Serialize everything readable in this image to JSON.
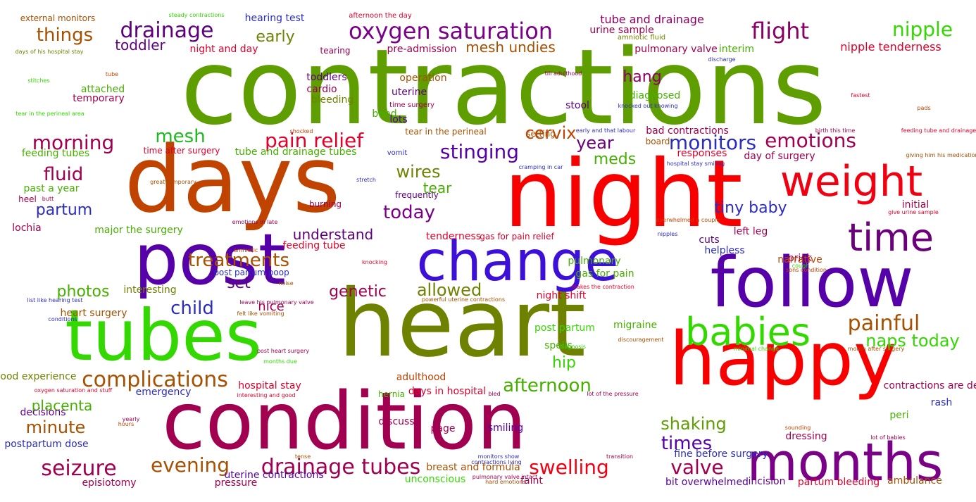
{
  "words": [
    {
      "text": "contractions",
      "color": "#5e9e00"
    },
    {
      "text": "days",
      "color": "#c04300"
    },
    {
      "text": "night",
      "color": "#f80000"
    },
    {
      "text": "heart",
      "color": "#6f8200"
    },
    {
      "text": "post",
      "color": "#5500a8"
    },
    {
      "text": "change",
      "color": "#3c10d8"
    },
    {
      "text": "follow",
      "color": "#5500a8"
    },
    {
      "text": "tubes",
      "color": "#33d800"
    },
    {
      "text": "happy",
      "color": "#f80000"
    },
    {
      "text": "condition",
      "color": "#a0004f"
    },
    {
      "text": "months",
      "color": "#7a0088"
    },
    {
      "text": "weight",
      "color": "#f00010"
    },
    {
      "text": "time",
      "color": "#6b007d"
    },
    {
      "text": "babies",
      "color": "#33d800"
    },
    {
      "text": "oxygen saturation",
      "color": "#7a0088"
    },
    {
      "text": "flight",
      "color": "#8b0065"
    },
    {
      "text": "drainage",
      "color": "#5e007e"
    },
    {
      "text": "drainage tubes",
      "color": "#a0004f"
    },
    {
      "text": "complications",
      "color": "#a65000"
    },
    {
      "text": "seizure",
      "color": "#a0004f"
    },
    {
      "text": "evening",
      "color": "#a65000"
    },
    {
      "text": "swelling",
      "color": "#f00010"
    },
    {
      "text": "valve",
      "color": "#a0004f"
    },
    {
      "text": "painful",
      "color": "#a65000"
    },
    {
      "text": "pain relief",
      "color": "#e0002a"
    },
    {
      "text": "emotions",
      "color": "#a0004f"
    },
    {
      "text": "monitors",
      "color": "#2b2cc0"
    },
    {
      "text": "stinging",
      "color": "#5500a8"
    },
    {
      "text": "mesh",
      "color": "#1fb820"
    },
    {
      "text": "morning",
      "color": "#a0004f"
    },
    {
      "text": "nipple",
      "color": "#33d800"
    },
    {
      "text": "things",
      "color": "#a65000"
    },
    {
      "text": "afternoon",
      "color": "#46b000"
    },
    {
      "text": "naps today",
      "color": "#33d800"
    },
    {
      "text": "shaking",
      "color": "#5e9e00"
    },
    {
      "text": "treatments",
      "color": "#a65000"
    },
    {
      "text": "allowed",
      "color": "#6f8200"
    },
    {
      "text": "wires",
      "color": "#6f8200"
    },
    {
      "text": "today",
      "color": "#7a0088"
    },
    {
      "text": "child",
      "color": "#2b2cc0"
    },
    {
      "text": "times",
      "color": "#5500a8"
    },
    {
      "text": "minute",
      "color": "#a65000"
    },
    {
      "text": "placenta",
      "color": "#46b000"
    },
    {
      "text": "fluid",
      "color": "#a0004f"
    },
    {
      "text": "partum",
      "color": "#2b2cc0"
    },
    {
      "text": "cervix",
      "color": "#c04300"
    },
    {
      "text": "year",
      "color": "#6b007d"
    },
    {
      "text": "tiny baby",
      "color": "#2b2cc0"
    },
    {
      "text": "genetic",
      "color": "#a0004f"
    },
    {
      "text": "photos",
      "color": "#46b000"
    },
    {
      "text": "understand",
      "color": "#5e007e"
    },
    {
      "text": "set",
      "color": "#5e007e"
    },
    {
      "text": "hip",
      "color": "#33d800"
    },
    {
      "text": "hang",
      "color": "#8b0065"
    },
    {
      "text": "meds",
      "color": "#46b000"
    },
    {
      "text": "early",
      "color": "#6f8200"
    },
    {
      "text": "toddler",
      "color": "#5e007e"
    },
    {
      "text": "mesh undies",
      "color": "#a65000"
    },
    {
      "text": "tear",
      "color": "#46b000"
    },
    {
      "text": "nice",
      "color": "#a0004f"
    },
    {
      "text": "tube and drainage",
      "color": "#8b0065"
    },
    {
      "text": "nipple tenderness",
      "color": "#e0002a"
    },
    {
      "text": "pre-admission",
      "color": "#a0004f"
    },
    {
      "text": "night and day",
      "color": "#e0002a"
    },
    {
      "text": "hearing test",
      "color": "#2b2cc0"
    },
    {
      "text": "external monitors",
      "color": "#a65000"
    },
    {
      "text": "steady contractions",
      "color": "#33d800"
    },
    {
      "text": "afternoon the day",
      "color": "#e0002a"
    },
    {
      "text": "urine sample",
      "color": "#a0004f"
    },
    {
      "text": "amniotic fluid",
      "color": "#6f8200"
    },
    {
      "text": "pulmonary valve",
      "color": "#a0004f"
    },
    {
      "text": "interim",
      "color": "#46b000"
    },
    {
      "text": "discharge",
      "color": "#2b2cc0"
    },
    {
      "text": "days of his hospital stay",
      "color": "#6f8200"
    },
    {
      "text": "tearing",
      "color": "#a0004f"
    },
    {
      "text": "operation",
      "color": "#a65000"
    },
    {
      "text": "till adulthood",
      "color": "#a0004f"
    },
    {
      "text": "toddlers",
      "color": "#5e007e"
    },
    {
      "text": "attached",
      "color": "#46b000"
    },
    {
      "text": "temporary",
      "color": "#a0004f"
    },
    {
      "text": "stitches",
      "color": "#33d800"
    },
    {
      "text": "tube",
      "color": "#c04300"
    },
    {
      "text": "cardio",
      "color": "#a0004f"
    },
    {
      "text": "bleeding",
      "color": "#6f8200"
    },
    {
      "text": "uterine",
      "color": "#5e007e"
    },
    {
      "text": "time surgery",
      "color": "#a0004f"
    },
    {
      "text": "diagnosed",
      "color": "#46b000"
    },
    {
      "text": "stool",
      "color": "#5e007e"
    },
    {
      "text": "knocked out knowing",
      "color": "#2b2cc0"
    },
    {
      "text": "fastest",
      "color": "#e0002a"
    },
    {
      "text": "pads",
      "color": "#c04300"
    },
    {
      "text": "bend",
      "color": "#46b000"
    },
    {
      "text": "lots",
      "color": "#5500a8"
    },
    {
      "text": "tear in the perineal area",
      "color": "#33d800"
    },
    {
      "text": "shocked",
      "color": "#c04300"
    },
    {
      "text": "tear in the perineal",
      "color": "#a65000"
    },
    {
      "text": "setting",
      "color": "#a65000"
    },
    {
      "text": "early and that labour",
      "color": "#2b2cc0"
    },
    {
      "text": "bad contractions",
      "color": "#a0004f"
    },
    {
      "text": "birth this time",
      "color": "#a0004f"
    },
    {
      "text": "feeding tube and drainage",
      "color": "#e0002a"
    },
    {
      "text": "feeding tubes",
      "color": "#46b000"
    },
    {
      "text": "time after surgery",
      "color": "#e0002a"
    },
    {
      "text": "tube and drainage tubes",
      "color": "#46b000"
    },
    {
      "text": "vomit",
      "color": "#2b2cc0"
    },
    {
      "text": "board",
      "color": "#a65000"
    },
    {
      "text": "responses",
      "color": "#e0002a"
    },
    {
      "text": "day of surgery",
      "color": "#a0004f"
    },
    {
      "text": "giving him his medication",
      "color": "#a65000"
    },
    {
      "text": "hospital stay smiling",
      "color": "#2b2cc0"
    },
    {
      "text": "cramping in car",
      "color": "#2b2cc0"
    },
    {
      "text": "great temporary",
      "color": "#a65000"
    },
    {
      "text": "stretch",
      "color": "#2b2cc0"
    },
    {
      "text": "past a year",
      "color": "#46b000"
    },
    {
      "text": "frequently",
      "color": "#5e007e"
    },
    {
      "text": "heel",
      "color": "#a0004f"
    },
    {
      "text": "butt",
      "color": "#a0004f"
    },
    {
      "text": "burning",
      "color": "#a0004f"
    },
    {
      "text": "initial",
      "color": "#a0004f"
    },
    {
      "text": "give urine sample",
      "color": "#e0002a"
    },
    {
      "text": "overwhelmed a couple",
      "color": "#c04300"
    },
    {
      "text": "lochia",
      "color": "#a0004f"
    },
    {
      "text": "major the surgery",
      "color": "#46b000"
    },
    {
      "text": "emotions in late",
      "color": "#a0004f"
    },
    {
      "text": "tenderness",
      "color": "#e0002a"
    },
    {
      "text": "gas for pain relief",
      "color": "#e0002a"
    },
    {
      "text": "left leg",
      "color": "#a0004f"
    },
    {
      "text": "nipples",
      "color": "#2b2cc0"
    },
    {
      "text": "cuts",
      "color": "#5e007e"
    },
    {
      "text": "helpless",
      "color": "#2b2cc0"
    },
    {
      "text": "feeding tube",
      "color": "#e0002a"
    },
    {
      "text": "amniotic",
      "color": "#c04300"
    },
    {
      "text": "post partum poop",
      "color": "#2b2cc0"
    },
    {
      "text": "knocking",
      "color": "#e0002a"
    },
    {
      "text": "pulmonary",
      "color": "#46b000"
    },
    {
      "text": "gas for pain",
      "color": "#46b000"
    },
    {
      "text": "prick",
      "color": "#a0004f"
    },
    {
      "text": "sons condition",
      "color": "#c04300"
    },
    {
      "text": "narrative",
      "color": "#c04300"
    },
    {
      "text": "cough",
      "color": "#33d800"
    },
    {
      "text": "makes the contraction",
      "color": "#e0002a"
    },
    {
      "text": "interesting",
      "color": "#6f8200"
    },
    {
      "text": "noise",
      "color": "#a65000"
    },
    {
      "text": "list like hearing test",
      "color": "#2b2cc0"
    },
    {
      "text": "leave his pulmonary valve",
      "color": "#a0004f"
    },
    {
      "text": "powerful uterine contractions",
      "color": "#a65000"
    },
    {
      "text": "night shift",
      "color": "#e0002a"
    },
    {
      "text": "heart surgery",
      "color": "#a65000"
    },
    {
      "text": "conditions",
      "color": "#2b2cc0"
    },
    {
      "text": "felt like vomiting",
      "color": "#a65000"
    },
    {
      "text": "post partum",
      "color": "#33d800"
    },
    {
      "text": "migraine",
      "color": "#46b000"
    },
    {
      "text": "spells",
      "color": "#46b000"
    },
    {
      "text": "diagnosis",
      "color": "#33d800"
    },
    {
      "text": "discouragement",
      "color": "#a65000"
    },
    {
      "text": "minimal change",
      "color": "#33d800"
    },
    {
      "text": "month after surgery",
      "color": "#a65000"
    },
    {
      "text": "post heart surgery",
      "color": "#a0004f"
    },
    {
      "text": "months due",
      "color": "#33d800"
    },
    {
      "text": "good experience",
      "color": "#6f8200"
    },
    {
      "text": "adulthood",
      "color": "#c04300"
    },
    {
      "text": "hospital stay",
      "color": "#e0002a"
    },
    {
      "text": "emergency",
      "color": "#2b2cc0"
    },
    {
      "text": "oxygen saturation and stuff",
      "color": "#e0002a"
    },
    {
      "text": "interesting and good",
      "color": "#e0002a"
    },
    {
      "text": "days in hospital",
      "color": "#e0002a"
    },
    {
      "text": "bled",
      "color": "#a0004f"
    },
    {
      "text": "lot of the pressure",
      "color": "#a0004f"
    },
    {
      "text": "contractions are def",
      "color": "#a0004f"
    },
    {
      "text": "hernia",
      "color": "#46b000"
    },
    {
      "text": "decisions",
      "color": "#5e007e"
    },
    {
      "text": "rash",
      "color": "#2b2cc0"
    },
    {
      "text": "peri",
      "color": "#46b000"
    },
    {
      "text": "yearly",
      "color": "#a0004f"
    },
    {
      "text": "hours",
      "color": "#c04300"
    },
    {
      "text": "discuss",
      "color": "#a0004f"
    },
    {
      "text": "smiling",
      "color": "#5500a8"
    },
    {
      "text": "page",
      "color": "#a0004f"
    },
    {
      "text": "sounding",
      "color": "#c04300"
    },
    {
      "text": "lot of babies",
      "color": "#a0004f"
    },
    {
      "text": "postpartum dose",
      "color": "#2b2cc0"
    },
    {
      "text": "dressing",
      "color": "#a0004f"
    },
    {
      "text": "fine before surgery",
      "color": "#2b2cc0"
    },
    {
      "text": "tense",
      "color": "#a65000"
    },
    {
      "text": "monitors show",
      "color": "#2b2cc0"
    },
    {
      "text": "contractions lying",
      "color": "#2b2cc0"
    },
    {
      "text": "transition",
      "color": "#a0004f"
    },
    {
      "text": "pulmonary valve intact",
      "color": "#a0004f"
    },
    {
      "text": "hard emotions",
      "color": "#a65000"
    },
    {
      "text": "breast and formula",
      "color": "#a65000"
    },
    {
      "text": "faint",
      "color": "#a0004f"
    },
    {
      "text": "unconscious",
      "color": "#33d800"
    },
    {
      "text": "uterine contractions",
      "color": "#5500a8"
    },
    {
      "text": "pressure",
      "color": "#a0004f"
    },
    {
      "text": "episiotomy",
      "color": "#a0004f"
    },
    {
      "text": "bit overwhelmed",
      "color": "#5500a8"
    },
    {
      "text": "incision",
      "color": "#5e007e"
    },
    {
      "text": "partum bleeding",
      "color": "#e0002a"
    },
    {
      "text": "ambulance",
      "color": "#a65000"
    },
    {
      "text": "gas for a contractions",
      "color": "#a65000"
    }
  ]
}
